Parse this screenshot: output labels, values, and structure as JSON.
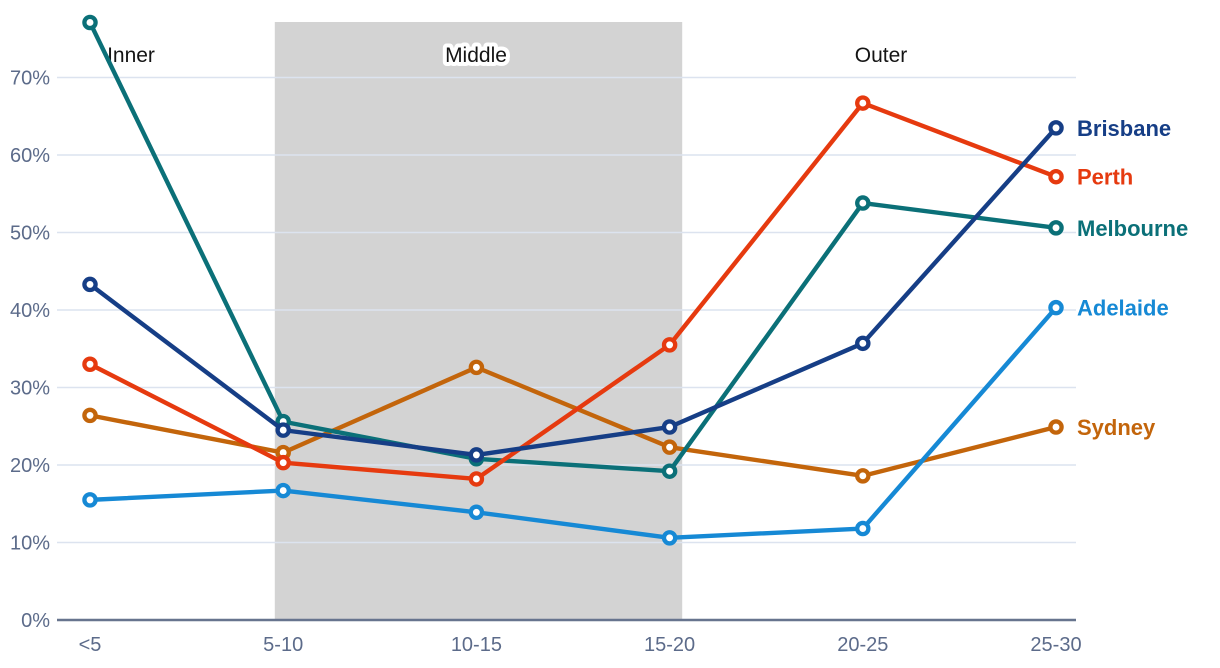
{
  "chart_data": {
    "type": "line",
    "title": "",
    "categories": [
      "<5",
      "5-10",
      "10-15",
      "15-20",
      "20-25",
      "25-30"
    ],
    "y_tick_labels": [
      "0%",
      "10%",
      "20%",
      "30%",
      "40%",
      "50%",
      "60%",
      "70%"
    ],
    "ylim": [
      0,
      80
    ],
    "grid": true,
    "legend_position": "end-of-line-labels",
    "series": [
      {
        "name": "Sydney",
        "color": "#c3650b",
        "values": [
          26.4,
          21.6,
          32.6,
          22.3,
          18.6,
          24.9
        ]
      },
      {
        "name": "Melbourne",
        "color": "#0b7078",
        "values": [
          77.1,
          25.6,
          20.8,
          19.2,
          53.8,
          50.6
        ]
      },
      {
        "name": "Perth",
        "color": "#e63a0f",
        "values": [
          33.0,
          20.3,
          18.2,
          35.5,
          66.7,
          57.2
        ]
      },
      {
        "name": "Adelaide",
        "color": "#1689d5",
        "values": [
          15.5,
          16.7,
          13.9,
          10.6,
          11.8,
          40.3
        ]
      },
      {
        "name": "Brisbane",
        "color": "#163e86",
        "values": [
          43.3,
          24.5,
          21.3,
          24.9,
          35.7,
          63.5
        ]
      }
    ],
    "end_label_order_top_to_bottom": [
      "Brisbane",
      "Perth",
      "Melbourne",
      "Adelaide",
      "Sydney"
    ],
    "regions": [
      {
        "label": "Inner",
        "shaded": false
      },
      {
        "label": "Middle",
        "shaded": true,
        "span_categories": [
          "5-10",
          "15-20"
        ]
      },
      {
        "label": "Outer",
        "shaded": false
      }
    ]
  },
  "colors": {
    "background": "#ffffff",
    "shaded_band": "#d3d3d3",
    "gridline": "#dce3ef",
    "axis_line": "#67748e",
    "tick_text": "#5c6b8a",
    "region_text": "#141414"
  }
}
